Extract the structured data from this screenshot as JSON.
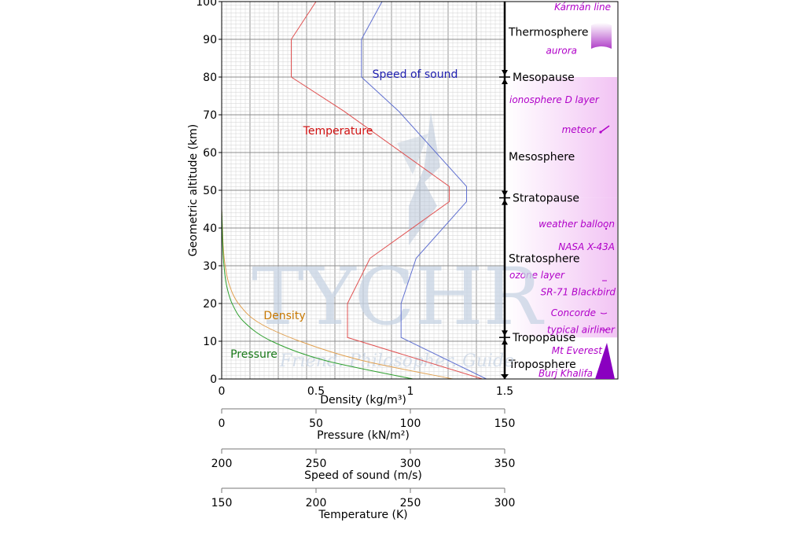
{
  "chart_data": {
    "type": "line",
    "ylabel": "Geometric altitude (km)",
    "ylim": [
      0,
      100
    ],
    "yticks": [
      "0",
      "10",
      "20",
      "30",
      "40",
      "50",
      "60",
      "70",
      "80",
      "90",
      "100"
    ],
    "grid": true,
    "x_axes": [
      {
        "key": "density",
        "label": "Density (kg/m³)",
        "color": "#c87800",
        "range": [
          0,
          1.5
        ],
        "ticks": [
          "0",
          "0.5",
          "1",
          "1.5"
        ]
      },
      {
        "key": "pressure",
        "label": "Pressure (kN/m²)",
        "color": "#1a7a1a",
        "range": [
          0,
          150
        ],
        "ticks": [
          "0",
          "50",
          "100",
          "150"
        ]
      },
      {
        "key": "sound",
        "label": "Speed of sound (m/s)",
        "color": "#2020b0",
        "range": [
          200,
          350
        ],
        "ticks": [
          "200",
          "250",
          "300",
          "350"
        ]
      },
      {
        "key": "temperature",
        "label": "Temperature (K)",
        "color": "#d01010",
        "range": [
          150,
          300
        ],
        "ticks": [
          "150",
          "200",
          "250",
          "300"
        ]
      }
    ],
    "series": [
      {
        "name": "Temperature",
        "axis": "temperature",
        "color": "#e05050",
        "points": [
          [
            288.15,
            0
          ],
          [
            216.65,
            11
          ],
          [
            216.65,
            20
          ],
          [
            228.65,
            32
          ],
          [
            270.65,
            47
          ],
          [
            270.65,
            51
          ],
          [
            214.65,
            71
          ],
          [
            186.87,
            80
          ],
          [
            186.87,
            90
          ],
          [
            200,
            100
          ]
        ]
      },
      {
        "name": "Speed of sound",
        "axis": "sound",
        "color": "#6070d0",
        "points": [
          [
            340.3,
            0
          ],
          [
            295.1,
            11
          ],
          [
            295.1,
            20
          ],
          [
            303.1,
            32
          ],
          [
            329.8,
            47
          ],
          [
            329.8,
            51
          ],
          [
            293.7,
            71
          ],
          [
            274.1,
            80
          ],
          [
            274.1,
            90
          ],
          [
            285,
            100
          ]
        ]
      },
      {
        "name": "Density",
        "axis": "density",
        "color": "#e0a050",
        "points": [
          [
            1.225,
            0
          ],
          [
            0.736,
            5
          ],
          [
            0.414,
            10
          ],
          [
            0.194,
            15
          ],
          [
            0.0889,
            20
          ],
          [
            0.0401,
            25
          ],
          [
            0.0184,
            30
          ],
          [
            0.0082,
            35
          ],
          [
            0.004,
            40
          ],
          [
            0,
            45
          ]
        ]
      },
      {
        "name": "Pressure",
        "axis": "pressure",
        "color": "#30a030",
        "points": [
          [
            101.3,
            0
          ],
          [
            54,
            5
          ],
          [
            26.5,
            10
          ],
          [
            12.1,
            15
          ],
          [
            5.5,
            20
          ],
          [
            2.5,
            25
          ],
          [
            1.2,
            30
          ],
          [
            0.57,
            35
          ],
          [
            0.29,
            40
          ],
          [
            0,
            45
          ]
        ]
      }
    ],
    "layers": [
      {
        "name": "Thermosphere",
        "altitude": 92
      },
      {
        "name": "Mesopause",
        "altitude": 80
      },
      {
        "name": "Mesosphere",
        "altitude": 59
      },
      {
        "name": "Stratopause",
        "altitude": 48
      },
      {
        "name": "Stratosphere",
        "altitude": 32
      },
      {
        "name": "Tropopause",
        "altitude": 11
      },
      {
        "name": "Troposphere",
        "altitude": 4
      }
    ],
    "boundaries": [
      80,
      48,
      11
    ],
    "events": [
      {
        "name": "Kármán line",
        "altitude": 98.5
      },
      {
        "name": "aurora",
        "altitude": 87
      },
      {
        "name": "ionosphere D layer",
        "altitude": 74
      },
      {
        "name": "meteor",
        "altitude": 66
      },
      {
        "name": "weather balloon",
        "altitude": 41
      },
      {
        "name": "NASA X-43A",
        "altitude": 35
      },
      {
        "name": "ozone layer",
        "altitude": 27.5
      },
      {
        "name": "SR-71 Blackbird",
        "altitude": 23
      },
      {
        "name": "Concorde",
        "altitude": 17.5
      },
      {
        "name": "typical airliner",
        "altitude": 13
      },
      {
        "name": "Mt Everest",
        "altitude": 7.5
      },
      {
        "name": "Burj Khalifa",
        "altitude": 1.5
      }
    ]
  },
  "watermark": {
    "brand": "TYCHR",
    "tagline": "Friend. Philosopher. Guide"
  }
}
